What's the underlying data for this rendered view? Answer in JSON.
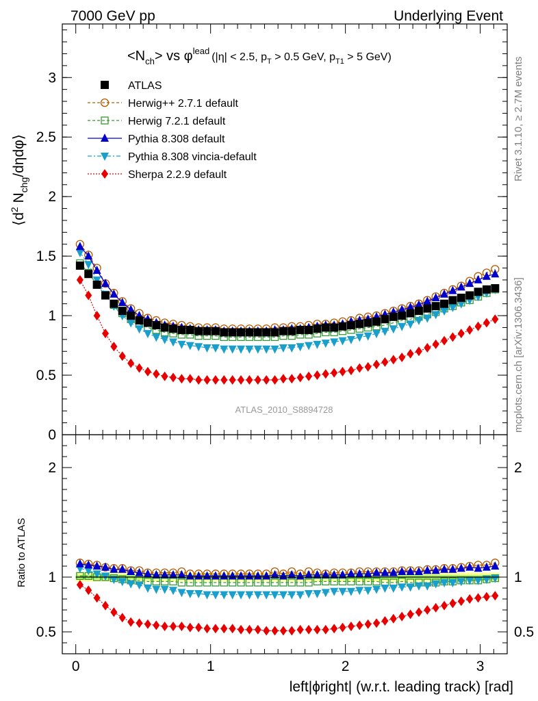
{
  "header": {
    "left": "7000 GeV pp",
    "right": "Underlying Event"
  },
  "side_labels": {
    "rivet": "Rivet 3.1.10, ≥ 2.7M events",
    "mcplots": "mcplots.cern.ch [arXiv:1306.3436]"
  },
  "chart_data": {
    "type": "scatter",
    "title": {
      "main": "<N",
      "main_sub": "ch",
      "main_tail": "> vs φ",
      "main_sup": "lead",
      "cuts": "(|η| < 2.5, p",
      "cuts_sub1": "T",
      "cuts_mid": " > 0.5 GeV, p",
      "cuts_sub2": "T1",
      "cuts_tail": " > 5 GeV)"
    },
    "ylabel": {
      "pre": "⟨d",
      "sup": "2",
      "mid": " N",
      "sub": "chg",
      "post": "/dηdφ⟩"
    },
    "ratio_ylabel": "Ratio to ATLAS",
    "xlabel": "left|ϕright| (w.r.t. leading track) [rad]",
    "watermark": "ATLAS_2010_S8894728",
    "xlim": [
      -0.1,
      3.2
    ],
    "ylim": [
      0,
      3.45
    ],
    "ratio_ylim": [
      0.3,
      2.3
    ],
    "x_ticks": [
      "0",
      "1",
      "2",
      "3"
    ],
    "y_ticks": [
      "0",
      "0.5",
      "1",
      "1.5",
      "2",
      "2.5",
      "3"
    ],
    "ratio_y_ticks": [
      "0.5",
      "1",
      "2"
    ],
    "legend_position": "top-left",
    "bins": 50,
    "series": [
      {
        "name": "ATLAS",
        "color": "#000000",
        "marker": "square-filled",
        "values": [
          1.42,
          1.35,
          1.26,
          1.17,
          1.1,
          1.04,
          1.0,
          0.96,
          0.94,
          0.92,
          0.9,
          0.89,
          0.88,
          0.88,
          0.87,
          0.87,
          0.87,
          0.86,
          0.86,
          0.86,
          0.86,
          0.86,
          0.86,
          0.86,
          0.87,
          0.87,
          0.88,
          0.88,
          0.89,
          0.9,
          0.9,
          0.91,
          0.92,
          0.93,
          0.94,
          0.95,
          0.97,
          0.99,
          1.0,
          1.02,
          1.04,
          1.06,
          1.08,
          1.1,
          1.13,
          1.15,
          1.17,
          1.2,
          1.22,
          1.23
        ],
        "ratio": []
      },
      {
        "name": "Herwig++ 2.7.1 default",
        "color": "#b35900",
        "marker": "circle-open",
        "values": [
          1.6,
          1.51,
          1.4,
          1.27,
          1.19,
          1.12,
          1.06,
          1.02,
          0.98,
          0.96,
          0.94,
          0.93,
          0.92,
          0.91,
          0.9,
          0.9,
          0.9,
          0.89,
          0.89,
          0.89,
          0.89,
          0.89,
          0.89,
          0.9,
          0.9,
          0.91,
          0.91,
          0.92,
          0.93,
          0.93,
          0.94,
          0.95,
          0.96,
          0.98,
          0.99,
          1.0,
          1.02,
          1.04,
          1.06,
          1.08,
          1.1,
          1.13,
          1.16,
          1.19,
          1.22,
          1.25,
          1.29,
          1.33,
          1.36,
          1.39
        ],
        "ratio": [
          1.13,
          1.12,
          1.11,
          1.09,
          1.08,
          1.08,
          1.06,
          1.06,
          1.04,
          1.04,
          1.04,
          1.04,
          1.05,
          1.03,
          1.03,
          1.03,
          1.03,
          1.03,
          1.03,
          1.03,
          1.03,
          1.03,
          1.03,
          1.05,
          1.03,
          1.05,
          1.03,
          1.05,
          1.04,
          1.03,
          1.04,
          1.04,
          1.04,
          1.05,
          1.05,
          1.05,
          1.05,
          1.05,
          1.06,
          1.06,
          1.06,
          1.07,
          1.07,
          1.08,
          1.08,
          1.09,
          1.1,
          1.11,
          1.11,
          1.13
        ]
      },
      {
        "name": "Herwig 7.2.1 default",
        "color": "#339933",
        "marker": "square-open",
        "values": [
          1.44,
          1.36,
          1.26,
          1.17,
          1.09,
          1.02,
          0.97,
          0.93,
          0.9,
          0.88,
          0.86,
          0.85,
          0.84,
          0.84,
          0.83,
          0.83,
          0.83,
          0.82,
          0.82,
          0.82,
          0.82,
          0.82,
          0.82,
          0.82,
          0.83,
          0.83,
          0.84,
          0.84,
          0.85,
          0.86,
          0.86,
          0.87,
          0.88,
          0.89,
          0.9,
          0.91,
          0.92,
          0.94,
          0.96,
          0.97,
          0.99,
          1.01,
          1.03,
          1.06,
          1.08,
          1.11,
          1.13,
          1.16,
          1.19,
          1.22
        ],
        "ratio": [
          1.01,
          1.01,
          1.0,
          1.0,
          0.99,
          0.98,
          0.97,
          0.97,
          0.96,
          0.96,
          0.96,
          0.96,
          0.95,
          0.95,
          0.95,
          0.95,
          0.95,
          0.95,
          0.95,
          0.95,
          0.95,
          0.95,
          0.95,
          0.95,
          0.95,
          0.95,
          0.95,
          0.95,
          0.96,
          0.96,
          0.96,
          0.96,
          0.96,
          0.96,
          0.96,
          0.96,
          0.95,
          0.95,
          0.96,
          0.95,
          0.95,
          0.95,
          0.95,
          0.96,
          0.96,
          0.97,
          0.97,
          0.97,
          0.98,
          0.99
        ]
      },
      {
        "name": "Pythia 8.308 default",
        "color": "#0000cc",
        "marker": "triangle-up-filled",
        "values": [
          1.58,
          1.5,
          1.38,
          1.27,
          1.18,
          1.11,
          1.05,
          1.0,
          0.97,
          0.94,
          0.92,
          0.91,
          0.9,
          0.89,
          0.88,
          0.88,
          0.88,
          0.87,
          0.87,
          0.87,
          0.87,
          0.87,
          0.87,
          0.88,
          0.88,
          0.89,
          0.89,
          0.9,
          0.91,
          0.92,
          0.92,
          0.93,
          0.95,
          0.96,
          0.97,
          0.99,
          1.01,
          1.03,
          1.05,
          1.07,
          1.09,
          1.12,
          1.15,
          1.18,
          1.21,
          1.24,
          1.27,
          1.3,
          1.33,
          1.35
        ],
        "ratio": [
          1.12,
          1.11,
          1.1,
          1.09,
          1.07,
          1.07,
          1.05,
          1.04,
          1.03,
          1.02,
          1.02,
          1.02,
          1.02,
          1.01,
          1.01,
          1.01,
          1.01,
          1.01,
          1.01,
          1.01,
          1.01,
          1.01,
          1.01,
          1.02,
          1.01,
          1.02,
          1.01,
          1.02,
          1.02,
          1.02,
          1.02,
          1.02,
          1.03,
          1.03,
          1.03,
          1.04,
          1.04,
          1.04,
          1.05,
          1.05,
          1.05,
          1.06,
          1.06,
          1.07,
          1.07,
          1.08,
          1.09,
          1.08,
          1.09,
          1.1
        ]
      },
      {
        "name": "Pythia 8.308 vincia-default",
        "color": "#1a9fcc",
        "marker": "triangle-down-filled",
        "values": [
          1.53,
          1.43,
          1.3,
          1.18,
          1.08,
          1.0,
          0.94,
          0.89,
          0.85,
          0.82,
          0.8,
          0.78,
          0.76,
          0.75,
          0.74,
          0.73,
          0.73,
          0.72,
          0.72,
          0.72,
          0.72,
          0.72,
          0.72,
          0.72,
          0.73,
          0.73,
          0.74,
          0.75,
          0.76,
          0.77,
          0.78,
          0.79,
          0.8,
          0.82,
          0.83,
          0.85,
          0.87,
          0.89,
          0.91,
          0.93,
          0.96,
          0.98,
          1.01,
          1.04,
          1.07,
          1.1,
          1.13,
          1.16,
          1.19,
          1.22
        ],
        "ratio": [
          1.08,
          1.06,
          1.03,
          1.01,
          0.98,
          0.96,
          0.94,
          0.93,
          0.9,
          0.89,
          0.89,
          0.88,
          0.86,
          0.85,
          0.85,
          0.84,
          0.84,
          0.84,
          0.84,
          0.84,
          0.84,
          0.84,
          0.84,
          0.84,
          0.84,
          0.84,
          0.84,
          0.85,
          0.85,
          0.86,
          0.87,
          0.87,
          0.87,
          0.88,
          0.88,
          0.89,
          0.9,
          0.9,
          0.91,
          0.91,
          0.92,
          0.92,
          0.94,
          0.95,
          0.95,
          0.96,
          0.97,
          0.97,
          0.98,
          0.99
        ]
      },
      {
        "name": "Sherpa 2.2.9 default",
        "color": "#e60000",
        "marker": "diamond-filled",
        "values": [
          1.3,
          1.17,
          1.0,
          0.85,
          0.74,
          0.66,
          0.6,
          0.56,
          0.53,
          0.51,
          0.49,
          0.48,
          0.47,
          0.47,
          0.46,
          0.46,
          0.46,
          0.46,
          0.46,
          0.46,
          0.46,
          0.46,
          0.46,
          0.46,
          0.47,
          0.47,
          0.48,
          0.49,
          0.5,
          0.51,
          0.52,
          0.53,
          0.54,
          0.56,
          0.57,
          0.59,
          0.61,
          0.63,
          0.65,
          0.68,
          0.7,
          0.73,
          0.76,
          0.79,
          0.82,
          0.85,
          0.88,
          0.91,
          0.94,
          0.97
        ],
        "ratio": [
          0.93,
          0.88,
          0.81,
          0.74,
          0.68,
          0.63,
          0.59,
          0.58,
          0.57,
          0.56,
          0.55,
          0.55,
          0.55,
          0.54,
          0.54,
          0.53,
          0.53,
          0.53,
          0.53,
          0.52,
          0.52,
          0.52,
          0.51,
          0.51,
          0.51,
          0.51,
          0.52,
          0.52,
          0.52,
          0.52,
          0.53,
          0.54,
          0.55,
          0.56,
          0.57,
          0.58,
          0.6,
          0.62,
          0.64,
          0.66,
          0.68,
          0.7,
          0.72,
          0.74,
          0.76,
          0.78,
          0.8,
          0.81,
          0.82,
          0.83
        ]
      }
    ]
  }
}
